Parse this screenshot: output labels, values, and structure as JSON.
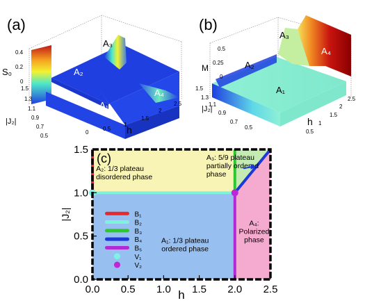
{
  "panels": {
    "a": {
      "label": "(a)",
      "zlabel": "S₀",
      "zticks": [
        "0.4",
        "0.2",
        "0"
      ],
      "jticks": [
        "1.5",
        "1.3",
        "1.1",
        "0.9",
        "0.7",
        "0.5"
      ],
      "hticks": [
        "0",
        "0.5",
        "1",
        "1.5",
        "2",
        "2.5"
      ],
      "ylabel": "|J₂|",
      "xlabel": "h",
      "regions": [
        "A₁",
        "A₂",
        "A₃",
        "A₄"
      ]
    },
    "b": {
      "label": "(b)",
      "zlabel": "M",
      "zticks": [
        "0.5",
        "0.25",
        "0"
      ],
      "jticks": [
        "1.5",
        "1.3",
        "1.1",
        "0.9",
        "0.7",
        "0.5"
      ],
      "hticks": [
        "0.5",
        "1",
        "1.5",
        "2",
        "2.5"
      ],
      "ylabel": "|J₂|",
      "xlabel": "h",
      "regions": [
        "A₁",
        "A₂",
        "A₃",
        "A₄"
      ]
    }
  },
  "chart_data": {
    "type": "phase-diagram",
    "panel_label": "(c)",
    "xlabel": "h",
    "ylabel": "|J₂|",
    "xlim": [
      0,
      2.5
    ],
    "ylim": [
      0,
      1.5
    ],
    "xticks": [
      0.0,
      0.5,
      1.0,
      1.5,
      2.0,
      2.5
    ],
    "xtick_labels": [
      "0.0",
      "0.5",
      "1.0",
      "1.5",
      "2.0",
      "2.5"
    ],
    "yticks": [
      0.0,
      0.5,
      1.0,
      1.5
    ],
    "ytick_labels": [
      "0.0",
      "0.5",
      "1.0",
      "1.5"
    ],
    "regions": [
      {
        "id": "A1",
        "lines": [
          "A₁: 1/3 plateau",
          "ordered phase"
        ],
        "color": "#97bff0",
        "polygon": [
          [
            0,
            0
          ],
          [
            2,
            0
          ],
          [
            2,
            1
          ],
          [
            0,
            1
          ]
        ],
        "label_at": [
          1.3,
          0.42
        ]
      },
      {
        "id": "A2",
        "lines": [
          "A₂: 1/3 plateau",
          "disordered phase"
        ],
        "color": "#f7f4b6",
        "polygon": [
          [
            0,
            1
          ],
          [
            2,
            1
          ],
          [
            2,
            1.5
          ],
          [
            0,
            1.5
          ]
        ],
        "label_at": [
          0.05,
          1.25
        ]
      },
      {
        "id": "A3",
        "lines": [
          "A₃: 5/9 plateau",
          "partially ordered",
          "phase"
        ],
        "color": "#c4ebb2",
        "polygon": [
          [
            2,
            1
          ],
          [
            2.5,
            1.5
          ],
          [
            2,
            1.5
          ]
        ],
        "label_at": [
          1.6,
          1.38
        ]
      },
      {
        "id": "A4",
        "lines": [
          "A₄:",
          "Polarized",
          "phase"
        ],
        "color": "#f5abd0",
        "polygon": [
          [
            2,
            0
          ],
          [
            2.5,
            0
          ],
          [
            2.5,
            1.5
          ],
          [
            2,
            1
          ]
        ],
        "label_at": [
          2.27,
          0.62
        ]
      }
    ],
    "boundaries": [
      {
        "name": "B₁",
        "color": "#e8282a",
        "points": [
          [
            0,
            1.0
          ],
          [
            0,
            1.5
          ]
        ]
      },
      {
        "name": "B₂",
        "color": "#7ff2dc",
        "points": [
          [
            0,
            1.0
          ],
          [
            2,
            1.0
          ]
        ]
      },
      {
        "name": "B₃",
        "color": "#2ec82e",
        "points": [
          [
            2,
            1.0
          ],
          [
            2,
            1.5
          ]
        ]
      },
      {
        "name": "B₄",
        "color": "#1c39d8",
        "points": [
          [
            2,
            1.0
          ],
          [
            2.5,
            1.5
          ]
        ]
      },
      {
        "name": "B₅",
        "color": "#b22ad8",
        "points": [
          [
            2,
            0
          ],
          [
            2,
            1.0
          ]
        ]
      }
    ],
    "points": [
      {
        "name": "V₁",
        "color": "#7ff2e8",
        "x": 0,
        "y": 1.0
      },
      {
        "name": "V₂",
        "color": "#bf26d8",
        "x": 2,
        "y": 1.0
      }
    ],
    "legend_placement": "left"
  }
}
